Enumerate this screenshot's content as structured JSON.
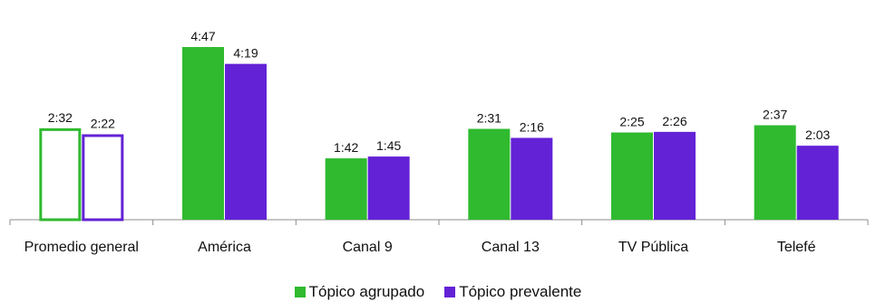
{
  "chart_data": {
    "type": "bar",
    "categories": [
      "Promedio general",
      "América",
      "Canal 9",
      "Canal 13",
      "TV Pública",
      "Telefé"
    ],
    "series": [
      {
        "name": "Tópico agrupado",
        "color": "#2fba2f",
        "values_minutes": [
          152,
          287,
          102,
          151,
          145,
          157
        ],
        "labels": [
          "2:32",
          "4:47",
          "1:42",
          "2:31",
          "2:25",
          "2:37"
        ]
      },
      {
        "name": "Tópico prevalente",
        "color": "#6322d6",
        "values_minutes": [
          142,
          259,
          105,
          136,
          146,
          123
        ],
        "labels": [
          "2:22",
          "4:19",
          "1:45",
          "2:16",
          "2:26",
          "2:03"
        ]
      }
    ],
    "outlined_categories": [
      "Promedio general"
    ],
    "ylim": [
      0,
      310
    ],
    "grid": false,
    "legend_position": "bottom"
  }
}
